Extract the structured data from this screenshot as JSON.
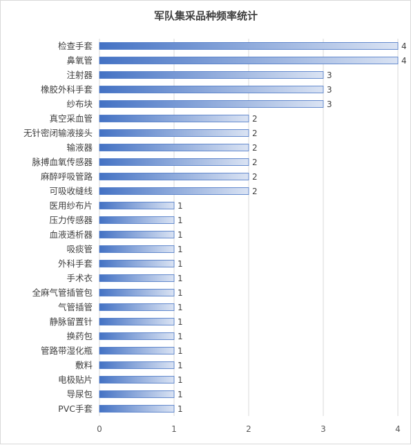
{
  "chart_data": {
    "type": "bar",
    "orientation": "horizontal",
    "title": "军队集采品种频率统计",
    "xlabel": "",
    "ylabel": "",
    "xlim": [
      0,
      4
    ],
    "xticks": [
      0,
      1,
      2,
      3,
      4
    ],
    "grid": true,
    "legend": "none",
    "categories": [
      "检查手套",
      "鼻氧管",
      "注射器",
      "橡胶外科手套",
      "纱布块",
      "真空采血管",
      "无针密闭输液接头",
      "输液器",
      "脉搏血氧传感器",
      "麻醉呼吸管路",
      "可吸收缝线",
      "医用纱布片",
      "压力传感器",
      "血液透析器",
      "吸痰管",
      "外科手套",
      "手术衣",
      "全麻气管插管包",
      "气管插管",
      "静脉留置针",
      "换药包",
      "管路带湿化瓶",
      "敷料",
      "电极贴片",
      "导尿包",
      "PVC手套"
    ],
    "values": [
      4,
      4,
      3,
      3,
      3,
      2,
      2,
      2,
      2,
      2,
      2,
      1,
      1,
      1,
      1,
      1,
      1,
      1,
      1,
      1,
      1,
      1,
      1,
      1,
      1,
      1
    ],
    "colors": {
      "bar_dark": "#4472c4",
      "bar_light": "#dae3f3",
      "grid": "#d9d9d9"
    }
  }
}
